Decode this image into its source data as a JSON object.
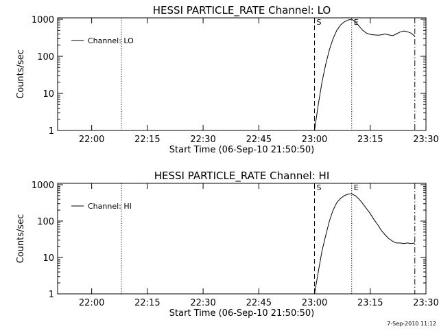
{
  "footer_timestamp": "7-Sep-2010 11:12",
  "chart_data": [
    {
      "type": "line",
      "title": "HESSI PARTICLE_RATE Channel: LO",
      "xlabel": "Start Time (06-Sep-10 21:50:50)",
      "ylabel": "Counts/sec",
      "yscale": "log",
      "ylim": [
        1,
        1000
      ],
      "xlim": [
        "21:50:50",
        "23:30:00"
      ],
      "x_ticks": [
        "22:00",
        "22:15",
        "22:30",
        "22:45",
        "23:00",
        "23:15",
        "23:30"
      ],
      "y_ticks": [
        "1",
        "10",
        "100",
        "1000"
      ],
      "legend": {
        "position": "top-left",
        "entries": [
          "Channel: LO"
        ]
      },
      "vlines": [
        {
          "time": "22:08",
          "style": "dotted",
          "label": ""
        },
        {
          "time": "23:00",
          "style": "dashed",
          "label": "S"
        },
        {
          "time": "23:10",
          "style": "dotted",
          "label": "E"
        },
        {
          "time": "23:27",
          "style": "dash-dot",
          "label": ""
        }
      ],
      "series": [
        {
          "name": "Channel: LO",
          "time": [
            "23:00",
            "23:01",
            "23:02",
            "23:03",
            "23:04",
            "23:05",
            "23:06",
            "23:07",
            "23:08",
            "23:09",
            "23:10",
            "23:11",
            "23:12",
            "23:13",
            "23:14",
            "23:15",
            "23:16",
            "23:17",
            "23:18",
            "23:19",
            "23:20",
            "23:21",
            "23:22",
            "23:23",
            "23:24",
            "23:25",
            "23:26",
            "23:27"
          ],
          "values": [
            1,
            5,
            20,
            60,
            150,
            300,
            500,
            700,
            850,
            950,
            1000,
            850,
            650,
            500,
            420,
            390,
            380,
            370,
            380,
            400,
            380,
            360,
            400,
            450,
            480,
            460,
            420,
            350
          ]
        }
      ]
    },
    {
      "type": "line",
      "title": "HESSI PARTICLE_RATE Channel: HI",
      "xlabel": "Start Time (06-Sep-10 21:50:50)",
      "ylabel": "Counts/sec",
      "yscale": "log",
      "ylim": [
        1,
        1000
      ],
      "xlim": [
        "21:50:50",
        "23:30:00"
      ],
      "x_ticks": [
        "22:00",
        "22:15",
        "22:30",
        "22:45",
        "23:00",
        "23:15",
        "23:30"
      ],
      "y_ticks": [
        "1",
        "10",
        "100",
        "1000"
      ],
      "legend": {
        "position": "top-left",
        "entries": [
          "Channel: HI"
        ]
      },
      "vlines": [
        {
          "time": "22:08",
          "style": "dotted",
          "label": ""
        },
        {
          "time": "23:00",
          "style": "dashed",
          "label": "S"
        },
        {
          "time": "23:10",
          "style": "dotted",
          "label": "E"
        },
        {
          "time": "23:27",
          "style": "dash-dot",
          "label": ""
        }
      ],
      "series": [
        {
          "name": "Channel: HI",
          "time": [
            "23:00",
            "23:01",
            "23:02",
            "23:03",
            "23:04",
            "23:05",
            "23:06",
            "23:07",
            "23:08",
            "23:09",
            "23:10",
            "23:11",
            "23:12",
            "23:13",
            "23:14",
            "23:15",
            "23:16",
            "23:17",
            "23:18",
            "23:19",
            "23:20",
            "23:21",
            "23:22",
            "23:23",
            "23:24",
            "23:25",
            "23:26",
            "23:27"
          ],
          "values": [
            1,
            4,
            15,
            40,
            100,
            200,
            320,
            420,
            500,
            550,
            560,
            500,
            400,
            300,
            220,
            160,
            110,
            80,
            55,
            42,
            33,
            28,
            25,
            25,
            24,
            25,
            24,
            25
          ]
        }
      ]
    }
  ]
}
